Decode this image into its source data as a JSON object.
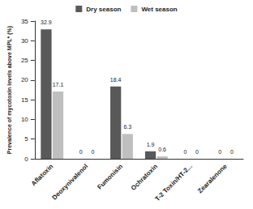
{
  "chart_data": {
    "type": "bar",
    "y_label": "Prevalence of mycotoxin levels above MPL* (%)",
    "categories": [
      "Aflatoxin",
      "Deoxynivalenol",
      "Fumonisin",
      "Ochratoxin",
      "T-2 Toxin/HT-2...",
      "Zearalenone"
    ],
    "series": [
      {
        "name": "Dry season",
        "color": "#595959",
        "values": [
          32.9,
          0,
          18.4,
          1.9,
          0,
          0
        ]
      },
      {
        "name": "Wet season",
        "color": "#bfbfbf",
        "values": [
          17.1,
          0,
          6.3,
          0.6,
          0,
          0
        ]
      }
    ],
    "ylim": [
      0,
      35
    ],
    "yticks": [
      0,
      5,
      10,
      15,
      20,
      25,
      30,
      35
    ],
    "grid": false,
    "legend": "top",
    "data_labels": true
  }
}
